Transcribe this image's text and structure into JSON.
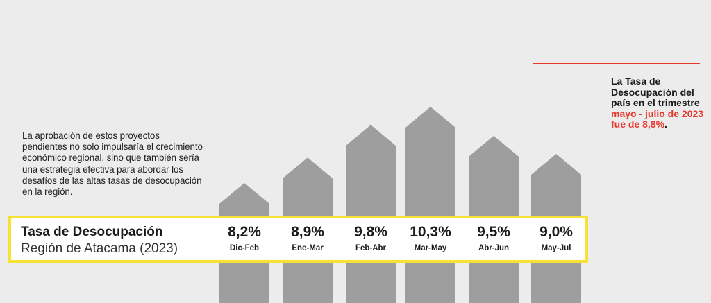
{
  "chart_data": {
    "type": "bar",
    "categories": [
      "Dic-Feb",
      "Ene-Mar",
      "Feb-Abr",
      "Mar-May",
      "Abr-Jun",
      "May-Jul"
    ],
    "values": [
      8.2,
      8.9,
      9.8,
      10.3,
      9.5,
      9.0
    ],
    "value_labels": [
      "8,2%",
      "8,9%",
      "9,8%",
      "10,3%",
      "9,5%",
      "9,0%"
    ],
    "title": "Tasa de Desocupación",
    "subtitle": "Región de Atacama (2023)",
    "reference_line": {
      "value": 8.8
    },
    "colors": {
      "bars": "#9e9e9e",
      "reference_line": "#e8382d",
      "highlight_border": "#f5e234",
      "background": "#ececec"
    }
  },
  "paragraph": "La aprobación de estos proyectos pendientes no solo impulsaría el crecimiento económico regional, sino que también sería una estrategia efectiva para abordar los desafíos de las altas tasas de desocupación en la región.",
  "note": {
    "text": "La Tasa de Desocupación del país en el trimestre",
    "highlight": "mayo - julio de 2023 fue de 8,8%",
    "end": "."
  }
}
